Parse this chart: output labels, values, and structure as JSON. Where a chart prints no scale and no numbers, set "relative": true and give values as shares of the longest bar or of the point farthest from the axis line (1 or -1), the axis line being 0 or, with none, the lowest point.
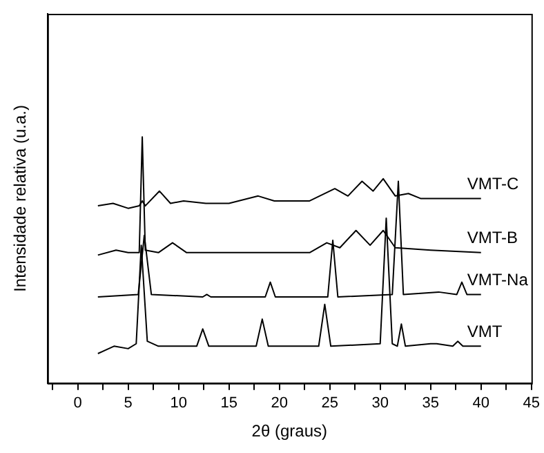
{
  "chart_data": {
    "type": "line",
    "xlabel": "2θ (graus)",
    "ylabel": "Intensidade relativa (u.a.)",
    "relative": true,
    "legend": false,
    "grid": false,
    "marker": "none",
    "line_style": "solid",
    "xlim": [
      -3,
      45
    ],
    "xticks": [
      {
        "value": -2.5,
        "label": null
      },
      0,
      {
        "value": 2.5,
        "label": null
      },
      5,
      {
        "value": 7.5,
        "label": null
      },
      10,
      {
        "value": 12.5,
        "label": null
      },
      15,
      {
        "value": 17.5,
        "label": null
      },
      20,
      {
        "value": 22.5,
        "label": null
      },
      25,
      {
        "value": 27.5,
        "label": null
      },
      30,
      {
        "value": 32.5,
        "label": null
      },
      35,
      {
        "value": 37.5,
        "label": null
      },
      40,
      {
        "value": 42.5,
        "label": null
      },
      45
    ],
    "series": [
      {
        "name": "VMT",
        "color": "#000000",
        "x": [
          2,
          3.6,
          5,
          5.8,
          6.3,
          6.9,
          8,
          11.8,
          12.4,
          13,
          17.7,
          18.3,
          18.9,
          23.9,
          24.5,
          25.1,
          30,
          30.6,
          31.2,
          31.7,
          32.1,
          32.5,
          35,
          35.6,
          37.2,
          37.7,
          38.2,
          40
        ],
        "values": [
          0.12,
          0.15,
          0.14,
          0.16,
          0.56,
          0.17,
          0.15,
          0.15,
          0.22,
          0.15,
          0.15,
          0.26,
          0.15,
          0.15,
          0.32,
          0.15,
          0.16,
          0.67,
          0.16,
          0.15,
          0.24,
          0.15,
          0.16,
          0.16,
          0.15,
          0.17,
          0.15,
          0.15
        ]
      },
      {
        "name": "VMT-Na",
        "color": "#000000",
        "x": [
          2,
          6,
          6.6,
          7.3,
          12.4,
          12.8,
          13.2,
          18.6,
          19.1,
          19.6,
          24.8,
          25.3,
          25.8,
          31.2,
          31.8,
          32.3,
          35.8,
          37.6,
          38.1,
          38.6,
          40
        ],
        "values": [
          0.35,
          0.36,
          0.6,
          0.36,
          0.35,
          0.36,
          0.35,
          0.35,
          0.41,
          0.35,
          0.35,
          0.58,
          0.35,
          0.36,
          0.82,
          0.36,
          0.37,
          0.36,
          0.41,
          0.36,
          0.36
        ]
      },
      {
        "name": "VMT-B",
        "color": "#000000",
        "x": [
          2,
          3.8,
          5,
          6.1,
          6.4,
          6.7,
          8,
          9.4,
          10.8,
          23,
          24.7,
          26,
          27.6,
          29,
          30.3,
          31.5,
          35,
          40
        ],
        "values": [
          0.52,
          0.54,
          0.53,
          0.53,
          1,
          0.54,
          0.53,
          0.57,
          0.53,
          0.53,
          0.57,
          0.55,
          0.62,
          0.56,
          0.62,
          0.55,
          0.54,
          0.53
        ]
      },
      {
        "name": "VMT-C",
        "color": "#000000",
        "x": [
          2,
          3.5,
          5,
          6.1,
          6.4,
          6.7,
          8.1,
          9.2,
          10.5,
          12.7,
          15,
          17.9,
          19.5,
          23,
          25.5,
          26.8,
          28.2,
          29.3,
          30.3,
          31.5,
          32.8,
          34,
          40
        ],
        "values": [
          0.72,
          0.73,
          0.71,
          0.72,
          0.74,
          0.72,
          0.78,
          0.73,
          0.74,
          0.73,
          0.73,
          0.76,
          0.74,
          0.74,
          0.79,
          0.76,
          0.82,
          0.78,
          0.83,
          0.76,
          0.77,
          0.75,
          0.75
        ]
      }
    ]
  }
}
